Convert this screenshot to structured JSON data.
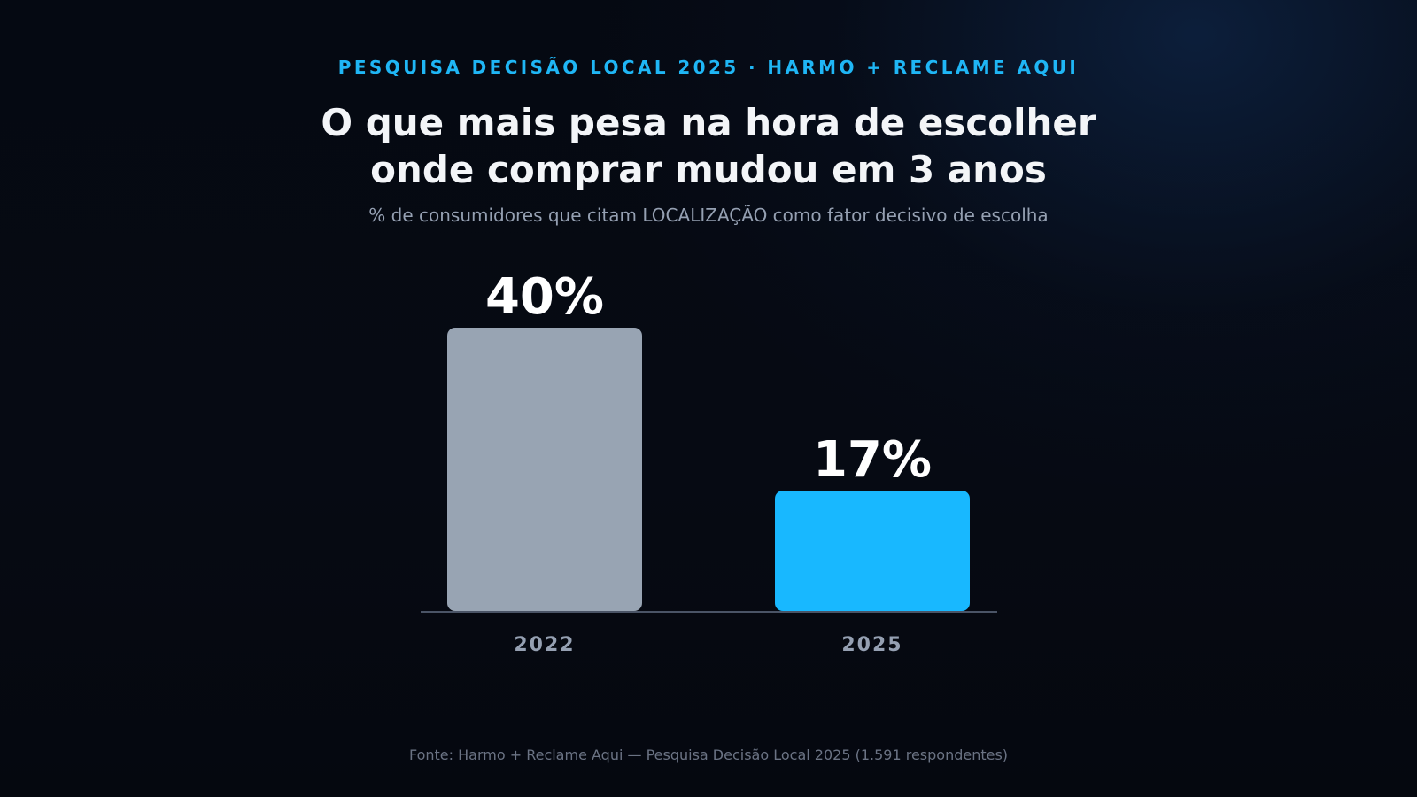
{
  "header": {
    "eyebrow": "PESQUISA DECISÃO LOCAL 2025 · HARMO + RECLAME AQUI",
    "title_line1": "O que mais pesa na hora de escolher",
    "title_line2": "onde comprar mudou em 3 anos",
    "subtitle": "% de consumidores que citam LOCALIZAÇÃO como fator decisivo de escolha"
  },
  "footer": {
    "source": "Fonte: Harmo + Reclame Aqui — Pesquisa Decisão Local 2025 (1.591 respondentes)"
  },
  "colors": {
    "accent": "#1fb6f5",
    "bar_2022": "#98a4b3",
    "bar_2025": "#18b8ff",
    "baseline": "#4a5466"
  },
  "chart_data": {
    "type": "bar",
    "categories": [
      "2022",
      "2025"
    ],
    "values": [
      40,
      17
    ],
    "value_labels": [
      "40%",
      "17%"
    ],
    "title": "O que mais pesa na hora de escolher onde comprar mudou em 3 anos",
    "subtitle": "% de consumidores que citam LOCALIZAÇÃO como fator decisivo de escolha",
    "xlabel": "",
    "ylabel": "",
    "ylim": [
      0,
      40
    ],
    "grid": false,
    "legend": "none"
  }
}
